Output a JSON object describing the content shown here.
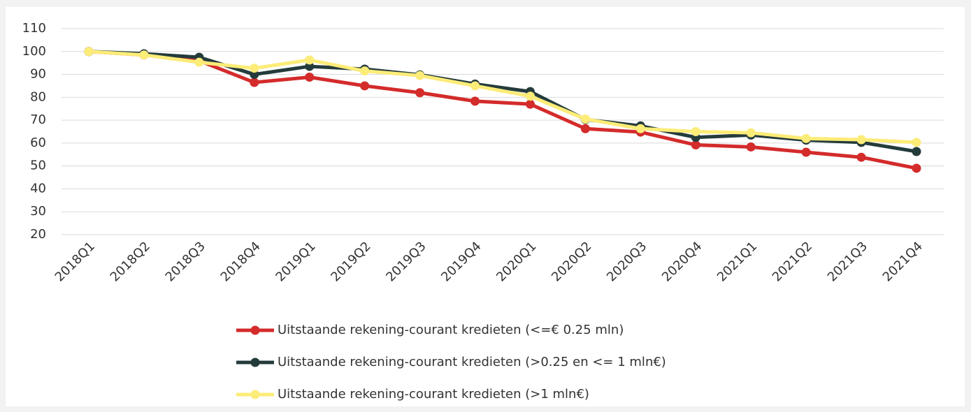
{
  "chart_data": {
    "type": "line",
    "categories": [
      "2018Q1",
      "2018Q2",
      "2018Q3",
      "2018Q4",
      "2019Q1",
      "2019Q2",
      "2019Q3",
      "2019Q4",
      "2020Q1",
      "2020Q2",
      "2020Q3",
      "2020Q4",
      "2021Q1",
      "2021Q2",
      "2021Q3",
      "2021Q4"
    ],
    "series": [
      {
        "name": "Uitstaande rekening-courant kredieten (<=€ 0.25 mln)",
        "color": "#d42b2b",
        "values": [
          100,
          98.5,
          96,
          86.5,
          88.8,
          85,
          82,
          78.3,
          77,
          66.3,
          64.8,
          59.2,
          58.3,
          56,
          53.8,
          49
        ]
      },
      {
        "name": "Uitstaande rekening-courant kredieten (>0.25 en <= 1 mln€)",
        "color": "#243b3b",
        "values": [
          100,
          99,
          97.5,
          90,
          93.5,
          92.3,
          89.8,
          85.8,
          82.5,
          70.3,
          67.5,
          62.5,
          63.5,
          61.3,
          60.3,
          56.3
        ]
      },
      {
        "name": "Uitstaande rekening-courant kredieten (>1 mln€)",
        "color": "#fcec78",
        "values": [
          100,
          98.5,
          95.3,
          92.7,
          96.3,
          91.5,
          89.5,
          85,
          80.5,
          70.5,
          66.3,
          65,
          64.5,
          62,
          61.5,
          60.3
        ]
      }
    ],
    "ylim": [
      20,
      110
    ],
    "yticks": [
      20,
      30,
      40,
      50,
      60,
      70,
      80,
      90,
      100,
      110
    ],
    "grid": true,
    "legend": "bottom"
  }
}
